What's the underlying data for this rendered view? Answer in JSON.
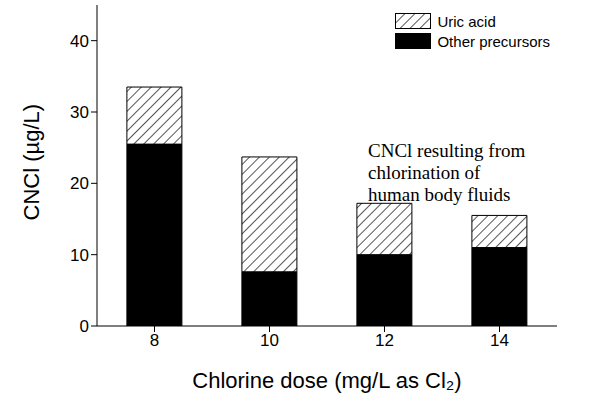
{
  "chart_data": {
    "type": "bar",
    "stacked": true,
    "x_label": "Chlorine dose (mg/L as Cl₂)",
    "y_label": "CNCl (µg/L)",
    "annotation": [
      "CNCl resulting from",
      "chlorination of",
      "human body fluids"
    ],
    "categories": [
      "8",
      "10",
      "12",
      "14"
    ],
    "series": [
      {
        "name": "Other precursors",
        "color": "#000000",
        "values": [
          25.5,
          7.6,
          10.0,
          11.0
        ]
      },
      {
        "name": "Uric acid",
        "color": "#ffffff",
        "marker": "hatch",
        "values": [
          8.0,
          16.1,
          7.2,
          4.5
        ]
      }
    ],
    "ylim": [
      0,
      45
    ],
    "yticks": [
      0,
      10,
      20,
      30,
      40
    ],
    "legend": "upper right",
    "grid": false
  }
}
